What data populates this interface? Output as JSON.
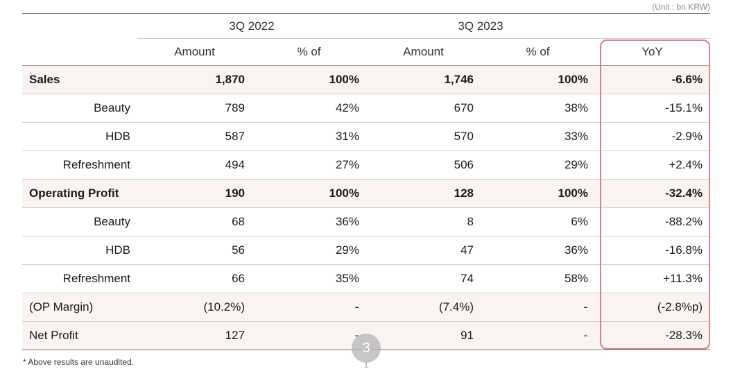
{
  "unit_note": "(Unit : bn KRW)",
  "headers": {
    "period_2022": "3Q 2022",
    "period_2023": "3Q 2023",
    "amount": "Amount",
    "percent_of": "% of",
    "yoy": "YoY"
  },
  "rows": [
    {
      "label": "Sales",
      "a22": "1,870",
      "p22": "100%",
      "a23": "1,746",
      "p23": "100%",
      "yoy": "-6.6%"
    },
    {
      "label": "Beauty",
      "a22": "789",
      "p22": "42%",
      "a23": "670",
      "p23": "38%",
      "yoy": "-15.1%"
    },
    {
      "label": "HDB",
      "a22": "587",
      "p22": "31%",
      "a23": "570",
      "p23": "33%",
      "yoy": "-2.9%"
    },
    {
      "label": "Refreshment",
      "a22": "494",
      "p22": "27%",
      "a23": "506",
      "p23": "29%",
      "yoy": "+2.4%"
    },
    {
      "label": "Operating Profit",
      "a22": "190",
      "p22": "100%",
      "a23": "128",
      "p23": "100%",
      "yoy": "-32.4%"
    },
    {
      "label": "Beauty",
      "a22": "68",
      "p22": "36%",
      "a23": "8",
      "p23": "6%",
      "yoy": "-88.2%"
    },
    {
      "label": "HDB",
      "a22": "56",
      "p22": "29%",
      "a23": "47",
      "p23": "36%",
      "yoy": "-16.8%"
    },
    {
      "label": "Refreshment",
      "a22": "66",
      "p22": "35%",
      "a23": "74",
      "p23": "58%",
      "yoy": "+11.3%"
    },
    {
      "label": "(OP Margin)",
      "a22": "(10.2%)",
      "p22": "-",
      "a23": "(7.4%)",
      "p23": "-",
      "yoy": "(-2.8%p)"
    },
    {
      "label": "Net Profit",
      "a22": "127",
      "p22": "-",
      "a23": "91",
      "p23": "-",
      "yoy": "-28.3%"
    }
  ],
  "footnote": "* Above results are unaudited.",
  "page_number": "3",
  "page_number_small": "1",
  "colors": {
    "highlight_border": "#d4838f",
    "major_row_bg": "#fbf3f2"
  }
}
